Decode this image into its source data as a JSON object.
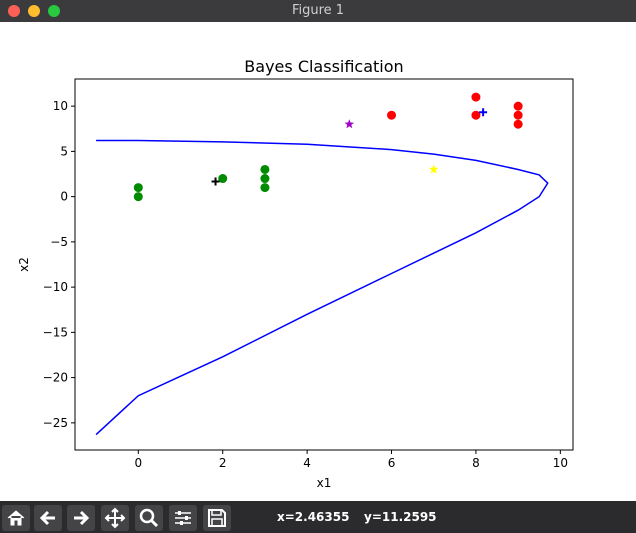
{
  "window": {
    "title": "Figure 1"
  },
  "toolbar": {
    "buttons": [
      {
        "name": "home-icon"
      },
      {
        "name": "back-icon"
      },
      {
        "name": "forward-icon"
      },
      {
        "name": "pan-icon"
      },
      {
        "name": "zoom-icon"
      },
      {
        "name": "configure-subplots-icon"
      },
      {
        "name": "save-icon"
      }
    ],
    "x_readout": "x=2.46355",
    "y_readout": "y=11.2595"
  },
  "chart_data": {
    "type": "scatter",
    "title": "Bayes Classification",
    "xlabel": "x1",
    "ylabel": "x2",
    "xlim": [
      -1.5,
      10.3
    ],
    "ylim": [
      -28,
      13
    ],
    "xticks": [
      0,
      2,
      4,
      6,
      8,
      10
    ],
    "yticks": [
      10,
      5,
      0,
      -5,
      -10,
      -15,
      -20,
      -25
    ],
    "grid": false,
    "series": [
      {
        "marker": "circle",
        "color": "#008b00",
        "points": [
          [
            0,
            1
          ],
          [
            0,
            0
          ],
          [
            2,
            2
          ],
          [
            3,
            3
          ],
          [
            3,
            2
          ],
          [
            3,
            1
          ]
        ]
      },
      {
        "marker": "circle",
        "color": "#ff0000",
        "points": [
          [
            6,
            9
          ],
          [
            8,
            11
          ],
          [
            8,
            9
          ],
          [
            9,
            10
          ],
          [
            9,
            9
          ],
          [
            9,
            8
          ]
        ]
      },
      {
        "marker": "plus",
        "color": "#000000",
        "points": [
          [
            1.83,
            1.67
          ]
        ]
      },
      {
        "marker": "plus",
        "color": "#0000ff",
        "points": [
          [
            8.17,
            9.33
          ]
        ]
      },
      {
        "marker": "star",
        "color": "#a000c8",
        "points": [
          [
            5,
            8
          ]
        ]
      },
      {
        "marker": "star",
        "color": "#ffff00",
        "points": [
          [
            7,
            3
          ]
        ]
      }
    ],
    "boundary": {
      "color": "#0000ff",
      "points": [
        [
          -1,
          6.2
        ],
        [
          0,
          6.2
        ],
        [
          2,
          6.05
        ],
        [
          4,
          5.8
        ],
        [
          6,
          5.2
        ],
        [
          7,
          4.7
        ],
        [
          8,
          4.0
        ],
        [
          9,
          3.0
        ],
        [
          9.5,
          2.4
        ],
        [
          9.7,
          1.5
        ],
        [
          9.5,
          0
        ],
        [
          9,
          -1.5
        ],
        [
          8,
          -4
        ],
        [
          6,
          -8.5
        ],
        [
          4,
          -13
        ],
        [
          2,
          -17.7
        ],
        [
          0,
          -22
        ],
        [
          -1,
          -26.3
        ]
      ]
    }
  }
}
